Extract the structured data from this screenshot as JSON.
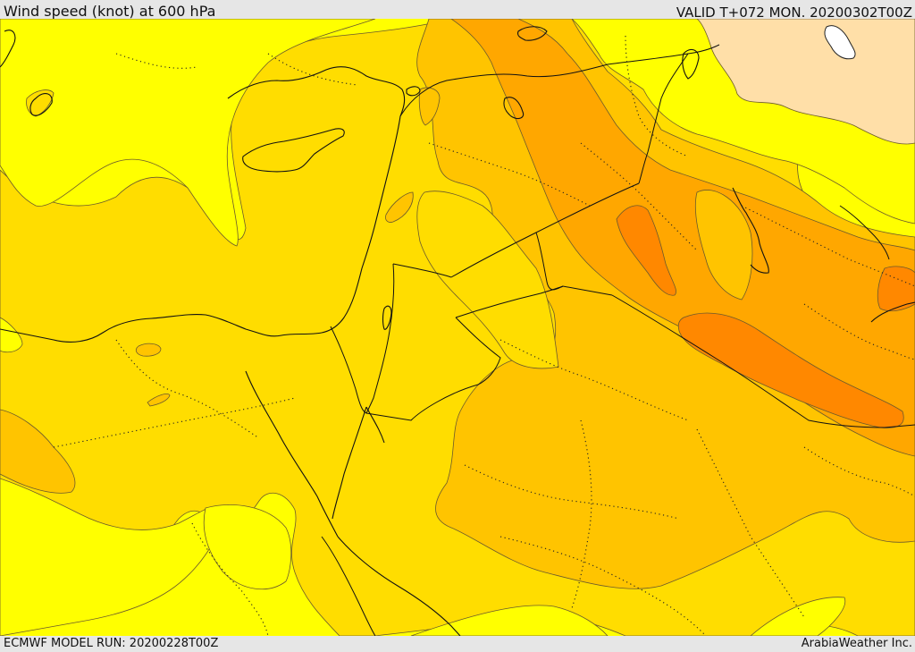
{
  "header": {
    "title": "Wind speed (knot) at 600 hPa",
    "valid": "VALID T+072 MON. 20200302T00Z"
  },
  "footer": {
    "model_run": "ECMWF MODEL RUN: 20200228T00Z",
    "credit": "ArabiaWeather Inc."
  },
  "map": {
    "colors": {
      "band1": "#ffff00",
      "band2": "#ffdd00",
      "band3": "#ffc400",
      "band4": "#ffa700",
      "band5": "#ff8800",
      "light": "#ffdfa8",
      "lake": "#ffffff"
    }
  }
}
